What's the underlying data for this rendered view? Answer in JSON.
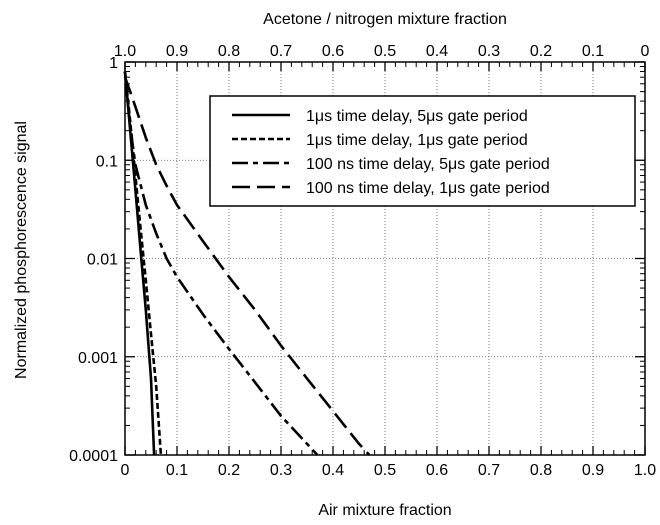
{
  "chart_data": {
    "type": "line",
    "xlabel": "Air mixture fraction",
    "x2label": "Acetone / nitrogen mixture fraction",
    "ylabel": "Normalized phosphorescence signal",
    "xlim": [
      0,
      1
    ],
    "ylim": [
      0.0001,
      1
    ],
    "yscale": "log",
    "xticks": [
      0,
      0.1,
      0.2,
      0.3,
      0.4,
      0.5,
      0.6,
      0.7,
      0.8,
      0.9,
      1.0
    ],
    "xtick_labels": [
      "0",
      "0.1",
      "0.2",
      "0.3",
      "0.4",
      "0.5",
      "0.6",
      "0.7",
      "0.8",
      "0.9",
      "1.0"
    ],
    "x2tick_labels": [
      "1.0",
      "0.9",
      "0.8",
      "0.7",
      "0.6",
      "0.5",
      "0.4",
      "0.3",
      "0.2",
      "0.1",
      "0"
    ],
    "yticks": [
      0.0001,
      0.001,
      0.01,
      0.1,
      1
    ],
    "ytick_labels": [
      "0.0001",
      "0.001",
      "0.01",
      "0.1",
      "1"
    ],
    "grid": true,
    "legend_position": "top-right",
    "series": [
      {
        "name": "1μs time delay, 5μs gate period",
        "dash": "solid",
        "x": [
          0,
          0.01,
          0.02,
          0.03,
          0.04,
          0.05,
          0.056
        ],
        "y": [
          0.8,
          0.2,
          0.05,
          0.012,
          0.003,
          0.0006,
          0.0001
        ]
      },
      {
        "name": "1μs time delay, 1μs gate period",
        "dash": "short-dash",
        "x": [
          0,
          0.01,
          0.02,
          0.03,
          0.04,
          0.05,
          0.06,
          0.069
        ],
        "y": [
          0.8,
          0.25,
          0.07,
          0.02,
          0.006,
          0.0017,
          0.0005,
          0.0001
        ]
      },
      {
        "name": "100 ns time delay, 5μs gate period",
        "dash": "dash-dot",
        "x": [
          0,
          0.005,
          0.01,
          0.02,
          0.04,
          0.06,
          0.08,
          0.1,
          0.15,
          0.2,
          0.25,
          0.3,
          0.35,
          0.37
        ],
        "y": [
          0.8,
          0.4,
          0.22,
          0.09,
          0.035,
          0.018,
          0.01,
          0.0065,
          0.0027,
          0.0012,
          0.00055,
          0.00025,
          0.00013,
          0.0001
        ]
      },
      {
        "name": "100 ns time delay, 1μs gate period",
        "dash": "long-dash",
        "x": [
          0,
          0.01,
          0.02,
          0.04,
          0.06,
          0.08,
          0.1,
          0.15,
          0.2,
          0.25,
          0.3,
          0.35,
          0.4,
          0.45,
          0.47
        ],
        "y": [
          0.7,
          0.5,
          0.35,
          0.17,
          0.09,
          0.055,
          0.035,
          0.015,
          0.0065,
          0.003,
          0.0013,
          0.0006,
          0.00028,
          0.00013,
          0.0001
        ]
      }
    ]
  }
}
